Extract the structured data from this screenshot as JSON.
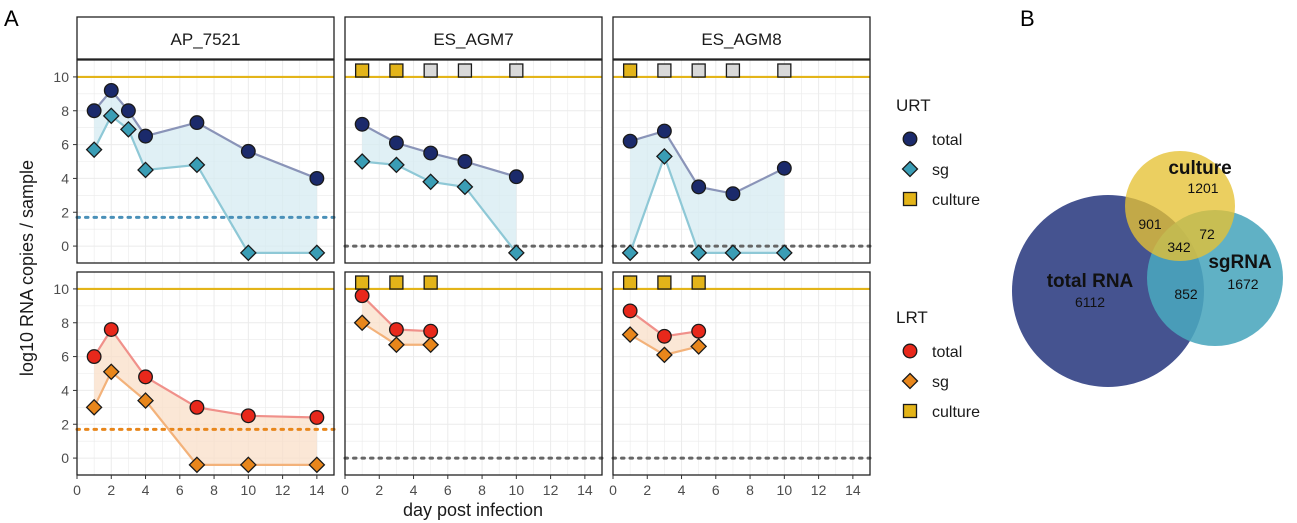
{
  "figure": {
    "panel_a_label": "A",
    "panel_b_label": "B"
  },
  "colors": {
    "urt_total": "#1b2a6b",
    "urt_sg": "#3a9db5",
    "urt_line_total": "#8a94b8",
    "urt_line_sg": "#8ec8d6",
    "urt_fill": "#d6ebf1",
    "urt_lod": "#4a90b8",
    "lrt_total": "#e8281b",
    "lrt_sg": "#e8861b",
    "lrt_line_total": "#f0908a",
    "lrt_line_sg": "#f3b27a",
    "lrt_fill": "#f9dfc8",
    "lrt_lod": "#e8861b",
    "culture_pos": "#e3b419",
    "culture_neg": "#d9d9d9",
    "culture_line": "#e3b419",
    "neutral_lod": "#666666",
    "venn_total": "#3b4a8a",
    "venn_culture": "#e6c133",
    "venn_sg": "#4aa6bd"
  },
  "chart_data": [
    {
      "type": "line",
      "subtype": "faceted-line-with-ribbon",
      "ylabel": "log10 RNA copies / sample",
      "xlabel": "day post infection",
      "xlim": [
        0,
        15
      ],
      "x_ticks": [
        0,
        2,
        4,
        6,
        8,
        10,
        12,
        14
      ],
      "ylim": [
        -1,
        11
      ],
      "y_ticks": [
        0,
        2,
        4,
        6,
        8,
        10
      ],
      "grid": true,
      "culture_band_y": 10,
      "facets": [
        "AP_7521",
        "ES_AGM7",
        "ES_AGM8"
      ],
      "rows": [
        {
          "name": "URT",
          "legend_title": "URT",
          "legend_entries": [
            "total",
            "sg",
            "culture"
          ],
          "panels": [
            {
              "facet": "AP_7521",
              "lod": 1.7,
              "total": {
                "x": [
                  1,
                  2,
                  3,
                  4,
                  7,
                  10,
                  14
                ],
                "y": [
                  8.0,
                  9.2,
                  8.0,
                  6.5,
                  7.3,
                  5.6,
                  4.0
                ]
              },
              "sg": {
                "x": [
                  1,
                  2,
                  3,
                  4,
                  7,
                  10,
                  14
                ],
                "y": [
                  5.7,
                  7.7,
                  6.9,
                  4.5,
                  4.8,
                  -0.4,
                  -0.4
                ]
              },
              "culture": []
            },
            {
              "facet": "ES_AGM7",
              "lod": 0,
              "total": {
                "x": [
                  1,
                  3,
                  5,
                  7,
                  10
                ],
                "y": [
                  7.2,
                  6.1,
                  5.5,
                  5.0,
                  4.1
                ]
              },
              "sg": {
                "x": [
                  1,
                  3,
                  5,
                  7,
                  10
                ],
                "y": [
                  5.0,
                  4.8,
                  3.8,
                  3.5,
                  -0.4
                ]
              },
              "culture": [
                {
                  "x": 1,
                  "positive": true
                },
                {
                  "x": 3,
                  "positive": true
                },
                {
                  "x": 5,
                  "positive": false
                },
                {
                  "x": 7,
                  "positive": false
                },
                {
                  "x": 10,
                  "positive": false
                }
              ]
            },
            {
              "facet": "ES_AGM8",
              "lod": 0,
              "total": {
                "x": [
                  1,
                  3,
                  5,
                  7,
                  10
                ],
                "y": [
                  6.2,
                  6.8,
                  3.5,
                  3.1,
                  4.6
                ]
              },
              "sg": {
                "x": [
                  1,
                  3,
                  5,
                  7,
                  10
                ],
                "y": [
                  -0.4,
                  5.3,
                  -0.4,
                  -0.4,
                  -0.4
                ]
              },
              "culture": [
                {
                  "x": 1,
                  "positive": true
                },
                {
                  "x": 3,
                  "positive": false
                },
                {
                  "x": 5,
                  "positive": false
                },
                {
                  "x": 7,
                  "positive": false
                },
                {
                  "x": 10,
                  "positive": false
                }
              ]
            }
          ]
        },
        {
          "name": "LRT",
          "legend_title": "LRT",
          "legend_entries": [
            "total",
            "sg",
            "culture"
          ],
          "panels": [
            {
              "facet": "AP_7521",
              "lod": 1.7,
              "total": {
                "x": [
                  1,
                  2,
                  4,
                  7,
                  10,
                  14
                ],
                "y": [
                  6.0,
                  7.6,
                  4.8,
                  3.0,
                  2.5,
                  2.4
                ]
              },
              "sg": {
                "x": [
                  1,
                  2,
                  4,
                  7,
                  10,
                  14
                ],
                "y": [
                  3.0,
                  5.1,
                  3.4,
                  -0.4,
                  -0.4,
                  -0.4
                ]
              },
              "culture": []
            },
            {
              "facet": "ES_AGM7",
              "lod": 0,
              "total": {
                "x": [
                  1,
                  3,
                  5
                ],
                "y": [
                  9.6,
                  7.6,
                  7.5
                ]
              },
              "sg": {
                "x": [
                  1,
                  3,
                  5
                ],
                "y": [
                  8.0,
                  6.7,
                  6.7
                ]
              },
              "culture": [
                {
                  "x": 1,
                  "positive": true
                },
                {
                  "x": 3,
                  "positive": true
                },
                {
                  "x": 5,
                  "positive": true
                }
              ]
            },
            {
              "facet": "ES_AGM8",
              "lod": 0,
              "total": {
                "x": [
                  1,
                  3,
                  5
                ],
                "y": [
                  8.7,
                  7.2,
                  7.5
                ]
              },
              "sg": {
                "x": [
                  1,
                  3,
                  5
                ],
                "y": [
                  7.3,
                  6.1,
                  6.6
                ]
              },
              "culture": [
                {
                  "x": 1,
                  "positive": true
                },
                {
                  "x": 3,
                  "positive": true
                },
                {
                  "x": 5,
                  "positive": true
                }
              ]
            }
          ]
        }
      ]
    },
    {
      "type": "venn",
      "sets": [
        {
          "name": "total RNA",
          "only": 6112
        },
        {
          "name": "culture",
          "only": 1201
        },
        {
          "name": "sgRNA",
          "only": 1672
        }
      ],
      "intersections": [
        {
          "sets": [
            "total RNA",
            "culture"
          ],
          "value": 901
        },
        {
          "sets": [
            "culture",
            "sgRNA"
          ],
          "value": 72
        },
        {
          "sets": [
            "total RNA",
            "sgRNA"
          ],
          "value": 852
        },
        {
          "sets": [
            "total RNA",
            "culture",
            "sgRNA"
          ],
          "value": 342
        }
      ]
    }
  ]
}
